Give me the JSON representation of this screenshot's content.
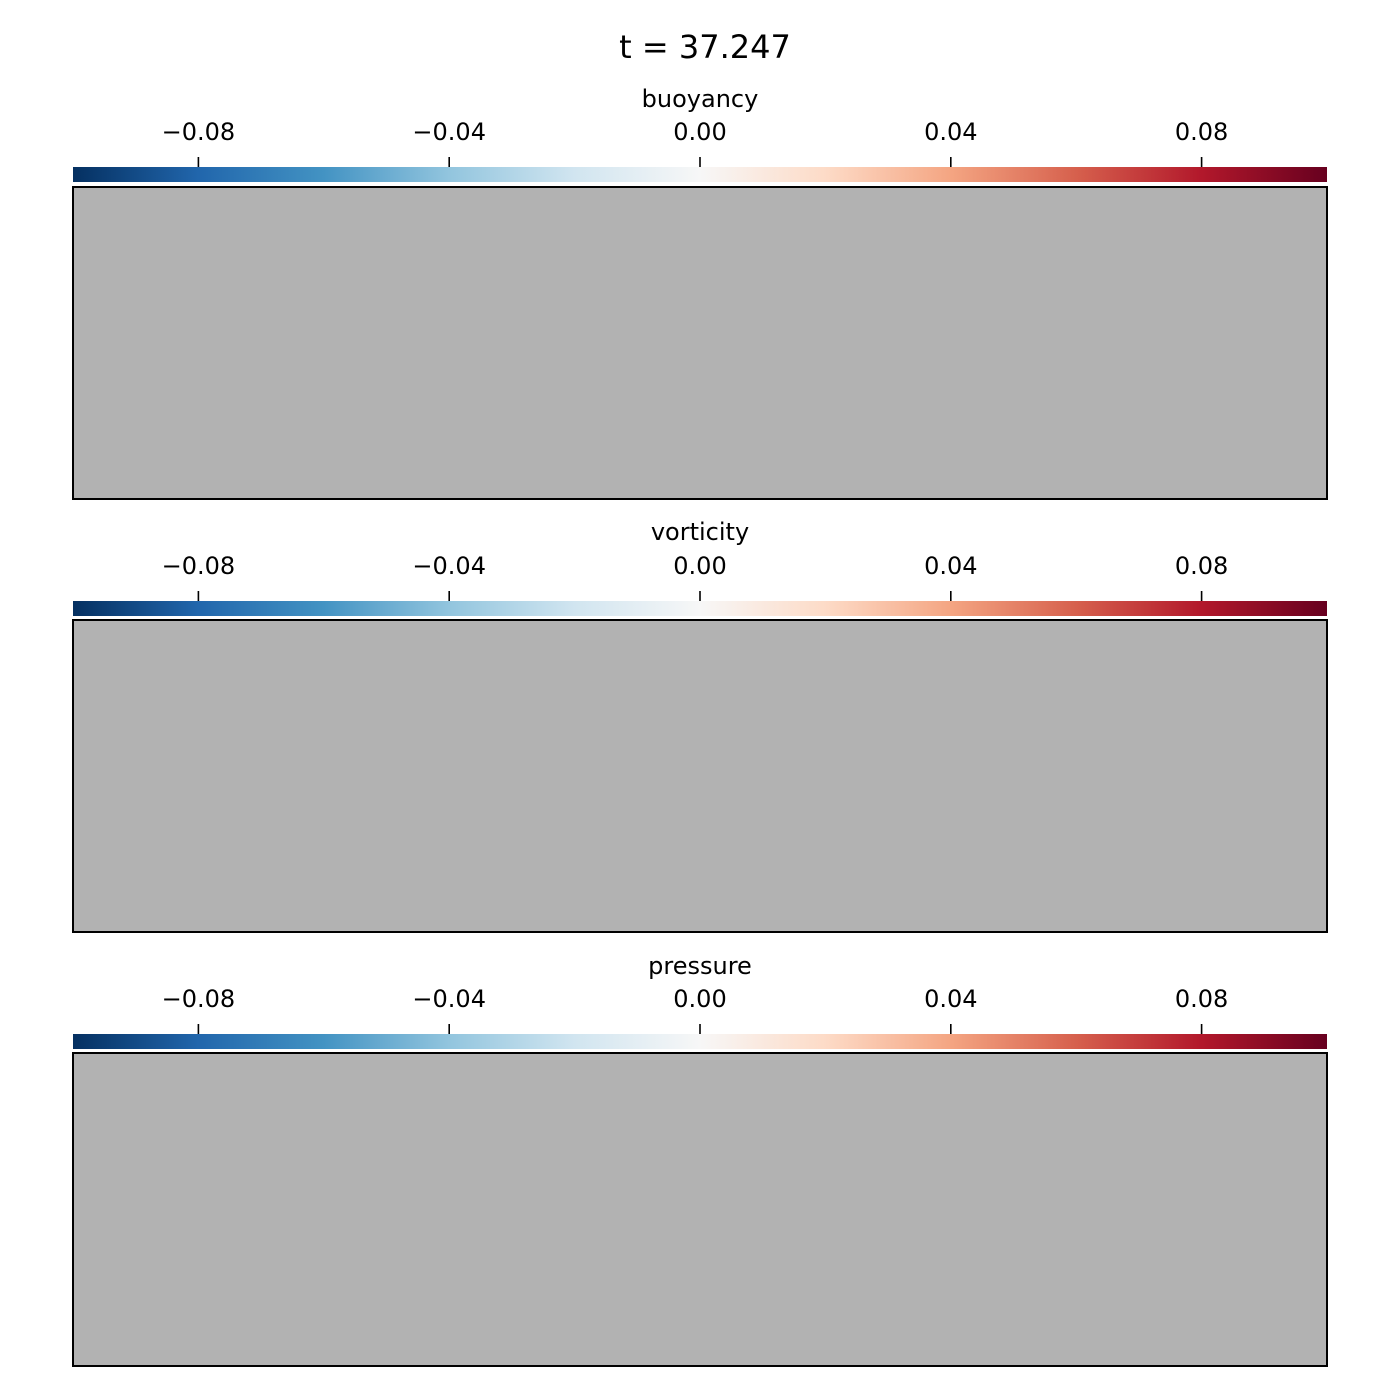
{
  "figure": {
    "title": "t = 37.247"
  },
  "colormap": {
    "name": "RdBu_r",
    "stops": [
      "#053061",
      "#2166ac",
      "#4393c3",
      "#92c5de",
      "#d1e5f0",
      "#f7f7f7",
      "#fddbc7",
      "#f4a582",
      "#d6604d",
      "#b2182b",
      "#67001f"
    ]
  },
  "chart_data": [
    {
      "type": "heatmap",
      "title": "buoyancy",
      "colorbar": {
        "range": [
          -0.1,
          0.1
        ],
        "ticks": [
          -0.08,
          -0.04,
          0.0,
          0.04,
          0.08
        ],
        "tick_labels": [
          "−0.08",
          "−0.04",
          "0.00",
          "0.04",
          "0.08"
        ],
        "orientation": "horizontal",
        "position": "top"
      },
      "field_color": "#b2b2b2",
      "values": []
    },
    {
      "type": "heatmap",
      "title": "vorticity",
      "colorbar": {
        "range": [
          -0.1,
          0.1
        ],
        "ticks": [
          -0.08,
          -0.04,
          0.0,
          0.04,
          0.08
        ],
        "tick_labels": [
          "−0.08",
          "−0.04",
          "0.00",
          "0.04",
          "0.08"
        ],
        "orientation": "horizontal",
        "position": "top"
      },
      "field_color": "#b2b2b2",
      "values": []
    },
    {
      "type": "heatmap",
      "title": "pressure",
      "colorbar": {
        "range": [
          -0.1,
          0.1
        ],
        "ticks": [
          -0.08,
          -0.04,
          0.0,
          0.04,
          0.08
        ],
        "tick_labels": [
          "−0.08",
          "−0.04",
          "0.00",
          "0.04",
          "0.08"
        ],
        "orientation": "horizontal",
        "position": "top"
      },
      "field_color": "#b2b2b2",
      "values": []
    }
  ]
}
